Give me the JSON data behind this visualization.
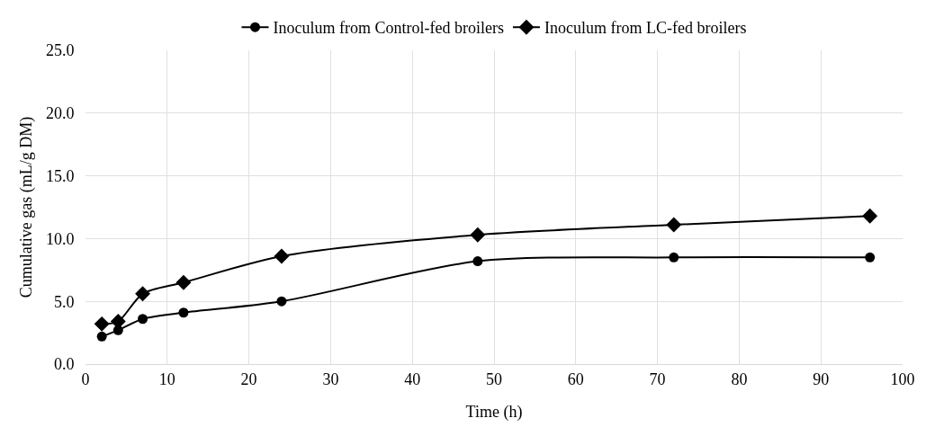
{
  "chart_data": {
    "type": "line",
    "xlabel": "Time (h)",
    "ylabel": "Cumulative gas (mL/g DM)",
    "x": [
      2,
      4,
      7,
      12,
      24,
      48,
      72,
      96
    ],
    "series": [
      {
        "name": "Inoculum from Control-fed broilers",
        "color": "#000000",
        "marker": "circle",
        "values": [
          2.2,
          2.7,
          3.6,
          4.1,
          5.0,
          8.2,
          8.5,
          8.5
        ]
      },
      {
        "name": "Inoculum from LC-fed broilers",
        "color": "#000000",
        "marker": "diamond",
        "values": [
          3.2,
          3.4,
          5.6,
          6.5,
          8.6,
          10.3,
          11.1,
          11.8
        ]
      }
    ],
    "xlim": [
      0,
      100
    ],
    "xticks": [
      0,
      10,
      20,
      30,
      40,
      50,
      60,
      70,
      80,
      90,
      100
    ],
    "ylim": [
      0,
      25
    ],
    "yticks": [
      {
        "value": 0,
        "label": "0.0"
      },
      {
        "value": 5,
        "label": "5.0"
      },
      {
        "value": 10,
        "label": "10.0"
      },
      {
        "value": 15,
        "label": "15.0"
      },
      {
        "value": 20,
        "label": "20.0"
      },
      {
        "value": 25,
        "label": "25.0"
      }
    ],
    "grid": true,
    "legend": "top",
    "line_style": "solid"
  }
}
